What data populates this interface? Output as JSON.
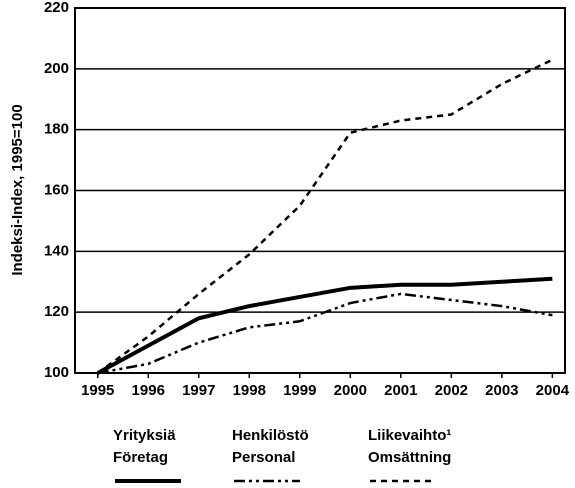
{
  "chart_data": {
    "type": "line",
    "ylabel": "Indeksi-Index, 1995=100",
    "x": [
      1995,
      1996,
      1997,
      1998,
      1999,
      2000,
      2001,
      2002,
      2003,
      2004
    ],
    "xlim": [
      1994.55,
      2004.25
    ],
    "xticks": [
      1995,
      1996,
      1997,
      1998,
      1999,
      2000,
      2001,
      2002,
      2003,
      2004
    ],
    "ylim": [
      100,
      220
    ],
    "yticks": [
      100,
      120,
      140,
      160,
      180,
      200,
      220
    ],
    "grid": true,
    "series": [
      {
        "name": "Yrityksiä\nFöretag",
        "color": "#000000",
        "linestyle": "solid",
        "values": [
          100,
          109,
          118,
          122,
          125,
          128,
          129,
          129,
          130,
          131
        ]
      },
      {
        "name": "Henkilöstö\nPersonal",
        "color": "#000000",
        "linestyle": "dashdot",
        "values": [
          100,
          103,
          110,
          115,
          117,
          123,
          126,
          124,
          122,
          119
        ]
      },
      {
        "name": "Liikevaihto¹\nOmsättning",
        "color": "#000000",
        "linestyle": "dashed",
        "values": [
          100,
          112,
          126,
          139,
          155,
          179,
          183,
          185,
          195,
          203
        ]
      }
    ]
  }
}
